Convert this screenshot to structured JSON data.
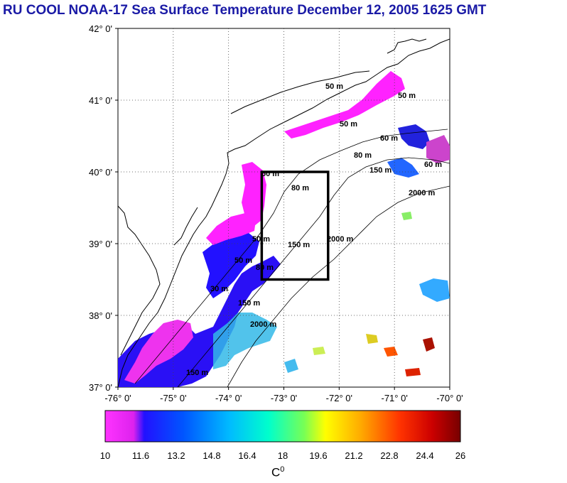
{
  "title": "RU COOL  NOAA-17 Sea Surface Temperature December 12, 2005 1625 GMT",
  "map": {
    "lat_labels": [
      "42° 0'",
      "41° 0'",
      "40° 0'",
      "39° 0'",
      "38° 0'",
      "37° 0'"
    ],
    "lon_labels": [
      "-76° 0'",
      "-75° 0'",
      "-74° 0'",
      "-73° 0'",
      "-72° 0'",
      "-71° 0'",
      "-70° 0'"
    ],
    "lat_range": [
      37,
      42
    ],
    "lon_range": [
      -76,
      -70
    ],
    "study_box": {
      "lon_min": -73.4,
      "lon_max": -72.2,
      "lat_min": 38.5,
      "lat_max": 40.0
    },
    "contour_labels": [
      "50 m",
      "50 m",
      "50 m",
      "60 m",
      "80 m",
      "150 m",
      "50 m",
      "80 m",
      "2000 m",
      "60 m",
      "50 m",
      "150 m",
      "2000 m",
      "50 m",
      "80 m",
      "150 m",
      "2000 m",
      "30 m",
      "150 m"
    ]
  },
  "colorbar": {
    "min": 10,
    "max": 26,
    "tick_labels": [
      "10",
      "11.6",
      "13.2",
      "14.8",
      "16.4",
      "18",
      "19.6",
      "21.2",
      "22.8",
      "24.4",
      "26"
    ],
    "unit_label": "C",
    "unit_sup": "0",
    "colors": [
      "#ff33ff",
      "#cc22ee",
      "#1111ff",
      "#0066ff",
      "#00ccff",
      "#00ffcc",
      "#66ff66",
      "#ffff00",
      "#ff9900",
      "#ff2200",
      "#880000"
    ]
  },
  "colors": {
    "title": "#1a1aa6",
    "land": "#ffffff",
    "box": "#000000"
  }
}
